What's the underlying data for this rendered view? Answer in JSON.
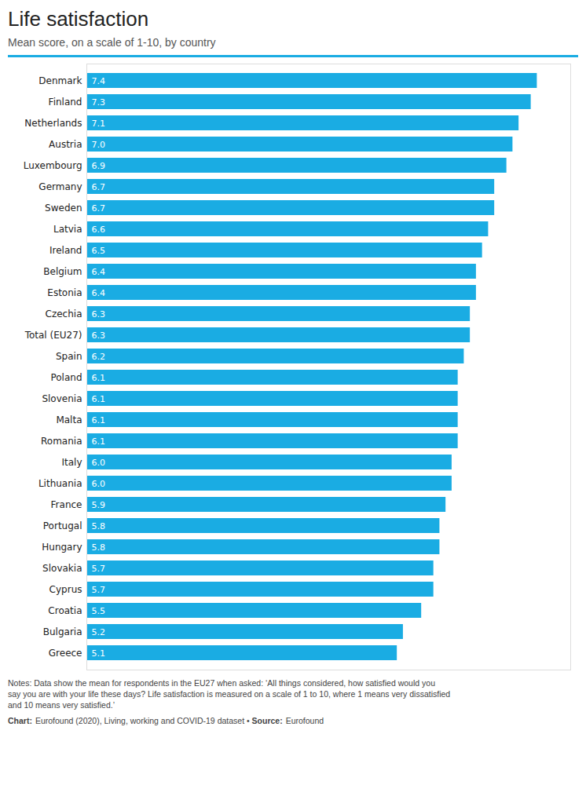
{
  "chart_data": {
    "type": "bar",
    "orientation": "horizontal",
    "title": "Life satisfaction",
    "subtitle": "Mean score, on a scale of 1-10, by country",
    "categories": [
      "Denmark",
      "Finland",
      "Netherlands",
      "Austria",
      "Luxembourg",
      "Germany",
      "Sweden",
      "Latvia",
      "Ireland",
      "Belgium",
      "Estonia",
      "Czechia",
      "Total (EU27)",
      "Spain",
      "Poland",
      "Slovenia",
      "Malta",
      "Romania",
      "Italy",
      "Lithuania",
      "France",
      "Portugal",
      "Hungary",
      "Slovakia",
      "Cyprus",
      "Croatia",
      "Bulgaria",
      "Greece"
    ],
    "values": [
      7.4,
      7.3,
      7.1,
      7.0,
      6.9,
      6.7,
      6.7,
      6.6,
      6.5,
      6.4,
      6.4,
      6.3,
      6.3,
      6.2,
      6.1,
      6.1,
      6.1,
      6.1,
      6.0,
      6.0,
      5.9,
      5.8,
      5.8,
      5.7,
      5.7,
      5.5,
      5.2,
      5.1
    ],
    "value_labels": [
      "7.4",
      "7.3",
      "7.1",
      "7.0",
      "6.9",
      "6.7",
      "6.7",
      "6.6",
      "6.5",
      "6.4",
      "6.4",
      "6.3",
      "6.3",
      "6.2",
      "6.1",
      "6.1",
      "6.1",
      "6.1",
      "6.0",
      "6.0",
      "5.9",
      "5.8",
      "5.8",
      "5.7",
      "5.7",
      "5.5",
      "5.2",
      "5.1"
    ],
    "data_labels": true,
    "color": "#1aace3",
    "xlim": [
      0,
      7.95
    ],
    "tick_labels": "y",
    "grid": false,
    "annotations": [
      "Notes: Data show the mean for respondents in the EU27 when asked: ‘All things considered, how satisfied would you",
      "say you are with your life these days? Life satisfaction is measured on a scale of 1 to 10, where 1 means very dissatisfied",
      "and 10 means very satisfied.’"
    ],
    "footer": [
      "Chart:",
      "Eurofound (2020), Living, working and COVID-19 dataset • ",
      "Source:",
      "Eurofound"
    ]
  }
}
